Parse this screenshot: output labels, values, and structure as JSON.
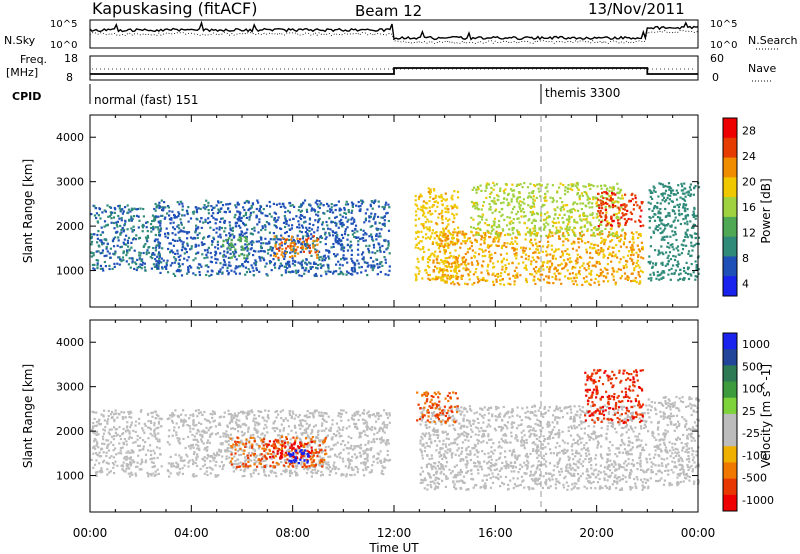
{
  "header": {
    "station": "Kapuskasing (fitACF)",
    "beam": "Beam 12",
    "date": "13/Nov/2011"
  },
  "summary": {
    "nsky_label": "N.Sky",
    "nsearch_label": "N.Search",
    "count_ticks": [
      "10^5",
      "10^0"
    ],
    "freq_label": "Freq.",
    "freq_unit": "[MHz]",
    "freq_ticks": [
      "18",
      "8"
    ],
    "nave_label": "Nave",
    "nave_ticks": [
      "60",
      "0"
    ],
    "cpid_label": "CPID",
    "cpid_segments": [
      {
        "name": "normal (fast) 151",
        "start_hour": 0
      },
      {
        "name": "themis 3300",
        "start_hour": 18
      }
    ],
    "freq_mhz": [
      {
        "from": 0,
        "to": 12,
        "value": 10.5
      },
      {
        "from": 12,
        "to": 22,
        "value": 13.0
      },
      {
        "from": 22,
        "to": 24,
        "value": 10.5
      }
    ]
  },
  "colors": {
    "power_scale": [
      "#1a22ee",
      "#1f50b8",
      "#2f8a7a",
      "#4fa853",
      "#9fd23e",
      "#f0c800",
      "#f08c00",
      "#e63c00",
      "#ee0000"
    ],
    "velocity_scale": [
      "#1a22ee",
      "#22459a",
      "#2d7a55",
      "#3d9b3d",
      "#7ed23a",
      "#bcbcbc",
      "#bcbcbc",
      "#f0b000",
      "#f07800",
      "#e83800",
      "#ee0000"
    ]
  },
  "chart_data": [
    {
      "type": "heatmap",
      "title": "",
      "xlabel": "Time UT",
      "ylabel": "Slant Range [km]",
      "xlim": [
        0,
        24
      ],
      "ylim": [
        180,
        4500
      ],
      "x_ticks": [
        "00:00",
        "04:00",
        "08:00",
        "12:00",
        "16:00",
        "20:00",
        "00:00"
      ],
      "y_ticks": [
        1000,
        2000,
        3000,
        4000
      ],
      "colorbar_label": "Power [dB]",
      "colorbar_ticks": [
        4,
        8,
        12,
        16,
        20,
        24,
        28
      ],
      "colorbar_range": [
        0,
        30
      ],
      "regions": [
        {
          "t": [
            0.0,
            2.8
          ],
          "r": [
            1000,
            2500
          ],
          "value": 7
        },
        {
          "t": [
            2.5,
            11.8
          ],
          "r": [
            900,
            2600
          ],
          "value": 6
        },
        {
          "t": [
            5.2,
            6.2
          ],
          "r": [
            1300,
            1800
          ],
          "value": 12
        },
        {
          "t": [
            7.2,
            9.0
          ],
          "r": [
            1300,
            1800
          ],
          "value": 23
        },
        {
          "t": [
            12.8,
            14.5
          ],
          "r": [
            800,
            2900
          ],
          "value": 19
        },
        {
          "t": [
            13.5,
            21.8
          ],
          "r": [
            700,
            1900
          ],
          "value": 20
        },
        {
          "t": [
            15.0,
            21.0
          ],
          "r": [
            1800,
            3000
          ],
          "value": 16
        },
        {
          "t": [
            20.0,
            21.8
          ],
          "r": [
            2000,
            2800
          ],
          "value": 26
        },
        {
          "t": [
            22.0,
            24.0
          ],
          "r": [
            800,
            3000
          ],
          "value": 8
        }
      ]
    },
    {
      "type": "heatmap",
      "title": "",
      "xlabel": "Time UT",
      "ylabel": "Slant Range [km]",
      "xlim": [
        0,
        24
      ],
      "ylim": [
        180,
        4500
      ],
      "x_ticks": [
        "00:00",
        "04:00",
        "08:00",
        "12:00",
        "16:00",
        "20:00",
        "00:00"
      ],
      "y_ticks": [
        1000,
        2000,
        3000,
        4000
      ],
      "colorbar_label": "Velocity [m s^-1]",
      "colorbar_ticks": [
        "1000",
        "500",
        "100",
        "25",
        "-25",
        "-100",
        "-500",
        "-1000"
      ],
      "regions": [
        {
          "t": [
            0.0,
            2.8
          ],
          "r": [
            1000,
            2500
          ],
          "value": 0
        },
        {
          "t": [
            3.0,
            11.8
          ],
          "r": [
            1000,
            2500
          ],
          "value": 0
        },
        {
          "t": [
            5.5,
            9.3
          ],
          "r": [
            1200,
            1900
          ],
          "value": -100
        },
        {
          "t": [
            7.0,
            8.8
          ],
          "r": [
            1400,
            1800
          ],
          "value": -500
        },
        {
          "t": [
            7.8,
            8.6
          ],
          "r": [
            1250,
            1600
          ],
          "value": 900
        },
        {
          "t": [
            13.0,
            22.0
          ],
          "r": [
            700,
            2600
          ],
          "value": 0
        },
        {
          "t": [
            12.8,
            14.5
          ],
          "r": [
            2200,
            2900
          ],
          "value": -100
        },
        {
          "t": [
            19.5,
            21.8
          ],
          "r": [
            2200,
            3400
          ],
          "value": -300
        },
        {
          "t": [
            22.0,
            24.0
          ],
          "r": [
            800,
            2800
          ],
          "value": 0
        }
      ]
    }
  ]
}
